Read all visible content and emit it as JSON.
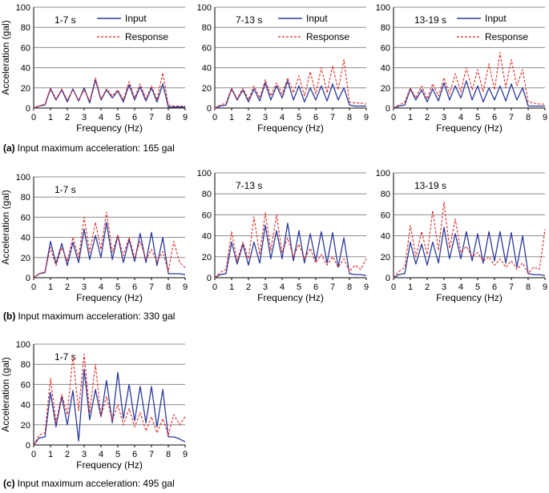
{
  "colors": {
    "input": "#2b3a9c",
    "response": "#e3231b",
    "grid": "#8c8c8c",
    "axis": "#000000"
  },
  "legend": {
    "input": "Input",
    "response": "Response"
  },
  "captions": [
    {
      "letter": "(a)",
      "text": "Input maximum acceleration: 165 gal"
    },
    {
      "letter": "(b)",
      "text": "Input maximum acceleration: 330 gal"
    },
    {
      "letter": "(c)",
      "text": "Input maximum acceleration: 495 gal"
    }
  ],
  "chart_data": [
    {
      "type": "line",
      "title": "1-7 s",
      "group": "a",
      "legend": true,
      "xlabel": "Frequency (Hz)",
      "ylabel": "Acceleration (gal)",
      "xlim": [
        0,
        9
      ],
      "ylim": [
        0,
        100
      ],
      "xticks": [
        "0",
        "1",
        "2",
        "3",
        "4",
        "5",
        "6",
        "7",
        "8",
        "9"
      ],
      "yticks": [
        "0",
        "20",
        "40",
        "60",
        "80",
        "100"
      ],
      "x": [
        0,
        0.33,
        0.67,
        1.0,
        1.33,
        1.67,
        2.0,
        2.33,
        2.67,
        3.0,
        3.33,
        3.67,
        4.0,
        4.33,
        4.67,
        5.0,
        5.33,
        5.67,
        6.0,
        6.33,
        6.67,
        7.0,
        7.33,
        7.67,
        8.0,
        8.33,
        8.67,
        9.0
      ],
      "series": [
        {
          "name": "Input",
          "values": [
            0,
            2,
            3,
            19,
            8,
            18,
            6,
            19,
            7,
            20,
            5,
            28,
            8,
            18,
            10,
            17,
            6,
            23,
            8,
            21,
            7,
            20,
            6,
            24,
            1,
            1,
            1,
            1
          ]
        },
        {
          "name": "Response",
          "values": [
            0,
            2,
            4,
            20,
            9,
            19,
            8,
            18,
            8,
            18,
            7,
            30,
            9,
            19,
            12,
            18,
            8,
            26,
            10,
            24,
            9,
            22,
            8,
            35,
            3,
            2,
            2,
            2
          ]
        }
      ]
    },
    {
      "type": "line",
      "title": "7-13 s",
      "group": "a",
      "legend": true,
      "xlabel": "Frequency (Hz)",
      "ylabel": "",
      "xlim": [
        0,
        9
      ],
      "ylim": [
        0,
        100
      ],
      "xticks": [
        "0",
        "1",
        "2",
        "3",
        "4",
        "5",
        "6",
        "7",
        "8",
        "9"
      ],
      "yticks": [
        "0",
        "20",
        "40",
        "60",
        "80",
        "100"
      ],
      "x": [
        0,
        0.33,
        0.67,
        1.0,
        1.33,
        1.67,
        2.0,
        2.33,
        2.67,
        3.0,
        3.33,
        3.67,
        4.0,
        4.33,
        4.67,
        5.0,
        5.33,
        5.67,
        6.0,
        6.33,
        6.67,
        7.0,
        7.33,
        7.67,
        8.0,
        8.33,
        8.67,
        9.0
      ],
      "series": [
        {
          "name": "Input",
          "values": [
            0,
            2,
            3,
            19,
            8,
            18,
            6,
            19,
            7,
            25,
            8,
            22,
            10,
            27,
            8,
            22,
            6,
            20,
            8,
            22,
            7,
            24,
            8,
            20,
            3,
            2,
            2,
            2
          ]
        },
        {
          "name": "Response",
          "values": [
            0,
            3,
            5,
            20,
            9,
            20,
            8,
            22,
            10,
            28,
            12,
            25,
            14,
            30,
            15,
            32,
            12,
            36,
            14,
            40,
            15,
            42,
            18,
            48,
            6,
            5,
            5,
            4
          ]
        }
      ]
    },
    {
      "type": "line",
      "title": "13-19 s",
      "group": "a",
      "legend": true,
      "xlabel": "Frequency (Hz)",
      "ylabel": "",
      "xlim": [
        0,
        9
      ],
      "ylim": [
        0,
        100
      ],
      "xticks": [
        "0",
        "1",
        "2",
        "3",
        "4",
        "5",
        "6",
        "7",
        "8",
        "9"
      ],
      "yticks": [
        "0",
        "20",
        "40",
        "60",
        "80",
        "100"
      ],
      "x": [
        0,
        0.33,
        0.67,
        1.0,
        1.33,
        1.67,
        2.0,
        2.33,
        2.67,
        3.0,
        3.33,
        3.67,
        4.0,
        4.33,
        4.67,
        5.0,
        5.33,
        5.67,
        6.0,
        6.33,
        6.67,
        7.0,
        7.33,
        7.67,
        8.0,
        8.33,
        8.67,
        9.0
      ],
      "series": [
        {
          "name": "Input",
          "values": [
            0,
            2,
            3,
            19,
            8,
            18,
            6,
            19,
            7,
            25,
            8,
            22,
            10,
            27,
            8,
            22,
            6,
            20,
            8,
            22,
            7,
            24,
            8,
            20,
            2,
            2,
            2,
            2
          ]
        },
        {
          "name": "Response",
          "values": [
            0,
            3,
            6,
            20,
            10,
            22,
            9,
            24,
            12,
            30,
            14,
            34,
            16,
            40,
            18,
            38,
            16,
            44,
            18,
            55,
            20,
            48,
            22,
            38,
            6,
            5,
            4,
            4
          ]
        }
      ]
    },
    {
      "type": "line",
      "title": "1-7 s",
      "group": "b",
      "legend": false,
      "xlabel": "Frequency (Hz)",
      "ylabel": "Acceleration (gal)",
      "xlim": [
        0,
        9
      ],
      "ylim": [
        0,
        100
      ],
      "xticks": [
        "0",
        "1",
        "2",
        "3",
        "4",
        "5",
        "6",
        "7",
        "8",
        "9"
      ],
      "yticks": [
        "0",
        "20",
        "40",
        "60",
        "80",
        "100"
      ],
      "x": [
        0,
        0.33,
        0.67,
        1.0,
        1.33,
        1.67,
        2.0,
        2.33,
        2.67,
        3.0,
        3.33,
        3.67,
        4.0,
        4.33,
        4.67,
        5.0,
        5.33,
        5.67,
        6.0,
        6.33,
        6.67,
        7.0,
        7.33,
        7.67,
        8.0,
        8.33,
        8.67,
        9.0
      ],
      "series": [
        {
          "name": "Input",
          "values": [
            0,
            4,
            5,
            36,
            14,
            34,
            12,
            35,
            15,
            48,
            18,
            42,
            20,
            55,
            18,
            42,
            15,
            38,
            16,
            44,
            15,
            45,
            12,
            40,
            4,
            4,
            4,
            3
          ]
        },
        {
          "name": "Response",
          "values": [
            0,
            4,
            6,
            30,
            12,
            30,
            16,
            40,
            20,
            60,
            25,
            55,
            28,
            65,
            25,
            42,
            22,
            40,
            20,
            36,
            18,
            28,
            16,
            26,
            6,
            36,
            15,
            10
          ]
        }
      ]
    },
    {
      "type": "line",
      "title": "7-13 s",
      "group": "b",
      "legend": false,
      "xlabel": "Frequency (Hz)",
      "ylabel": "",
      "xlim": [
        0,
        9
      ],
      "ylim": [
        0,
        100
      ],
      "xticks": [
        "0",
        "1",
        "2",
        "3",
        "4",
        "5",
        "6",
        "7",
        "8",
        "9"
      ],
      "yticks": [
        "0",
        "20",
        "40",
        "60",
        "80",
        "100"
      ],
      "x": [
        0,
        0.33,
        0.67,
        1.0,
        1.33,
        1.67,
        2.0,
        2.33,
        2.67,
        3.0,
        3.33,
        3.67,
        4.0,
        4.33,
        4.67,
        5.0,
        5.33,
        5.67,
        6.0,
        6.33,
        6.67,
        7.0,
        7.33,
        7.67,
        8.0,
        8.33,
        8.67,
        9.0
      ],
      "series": [
        {
          "name": "Input",
          "values": [
            0,
            3,
            4,
            34,
            13,
            32,
            12,
            34,
            14,
            50,
            18,
            45,
            18,
            52,
            16,
            45,
            14,
            42,
            16,
            44,
            14,
            43,
            10,
            38,
            4,
            3,
            3,
            2
          ]
        },
        {
          "name": "Response",
          "values": [
            0,
            5,
            8,
            44,
            16,
            34,
            18,
            58,
            22,
            62,
            26,
            60,
            24,
            38,
            20,
            32,
            18,
            28,
            14,
            22,
            12,
            20,
            10,
            18,
            6,
            12,
            8,
            18
          ]
        }
      ]
    },
    {
      "type": "line",
      "title": "13-19 s",
      "group": "b",
      "legend": false,
      "xlabel": "Frequency (Hz)",
      "ylabel": "",
      "xlim": [
        0,
        9
      ],
      "ylim": [
        0,
        100
      ],
      "xticks": [
        "0",
        "1",
        "2",
        "3",
        "4",
        "5",
        "6",
        "7",
        "8",
        "9"
      ],
      "yticks": [
        "0",
        "20",
        "40",
        "60",
        "80",
        "100"
      ],
      "x": [
        0,
        0.33,
        0.67,
        1.0,
        1.33,
        1.67,
        2.0,
        2.33,
        2.67,
        3.0,
        3.33,
        3.67,
        4.0,
        4.33,
        4.67,
        5.0,
        5.33,
        5.67,
        6.0,
        6.33,
        6.67,
        7.0,
        7.33,
        7.67,
        8.0,
        8.33,
        8.67,
        9.0
      ],
      "series": [
        {
          "name": "Input",
          "values": [
            0,
            3,
            4,
            34,
            13,
            32,
            12,
            34,
            14,
            48,
            18,
            42,
            18,
            44,
            16,
            42,
            14,
            44,
            16,
            44,
            14,
            43,
            10,
            40,
            4,
            3,
            3,
            2
          ]
        },
        {
          "name": "Response",
          "values": [
            0,
            6,
            10,
            50,
            20,
            44,
            22,
            64,
            26,
            72,
            28,
            56,
            24,
            30,
            20,
            24,
            16,
            20,
            12,
            18,
            10,
            16,
            8,
            14,
            4,
            10,
            8,
            46
          ]
        }
      ]
    },
    {
      "type": "line",
      "title": "1-7 s",
      "group": "c",
      "legend": false,
      "xlabel": "Frequency (Hz)",
      "ylabel": "Acceleration (gal)",
      "xlim": [
        0,
        9
      ],
      "ylim": [
        0,
        100
      ],
      "xticks": [
        "0",
        "1",
        "2",
        "3",
        "4",
        "5",
        "6",
        "7",
        "8",
        "9"
      ],
      "yticks": [
        "0",
        "20",
        "40",
        "60",
        "80",
        "100"
      ],
      "x": [
        0,
        0.33,
        0.67,
        1.0,
        1.33,
        1.67,
        2.0,
        2.33,
        2.67,
        3.0,
        3.33,
        3.67,
        4.0,
        4.33,
        4.67,
        5.0,
        5.33,
        5.67,
        6.0,
        6.33,
        6.67,
        7.0,
        7.33,
        7.67,
        8.0,
        8.33,
        8.67,
        9.0
      ],
      "series": [
        {
          "name": "Input",
          "values": [
            0,
            7,
            8,
            52,
            18,
            48,
            20,
            54,
            4,
            75,
            25,
            55,
            28,
            64,
            22,
            72,
            26,
            60,
            24,
            58,
            22,
            58,
            18,
            55,
            8,
            8,
            6,
            3
          ]
        },
        {
          "name": "Response",
          "values": [
            0,
            10,
            12,
            66,
            22,
            50,
            30,
            88,
            34,
            90,
            32,
            80,
            28,
            48,
            24,
            40,
            20,
            36,
            18,
            32,
            14,
            28,
            12,
            26,
            10,
            30,
            20,
            28
          ]
        }
      ]
    }
  ]
}
